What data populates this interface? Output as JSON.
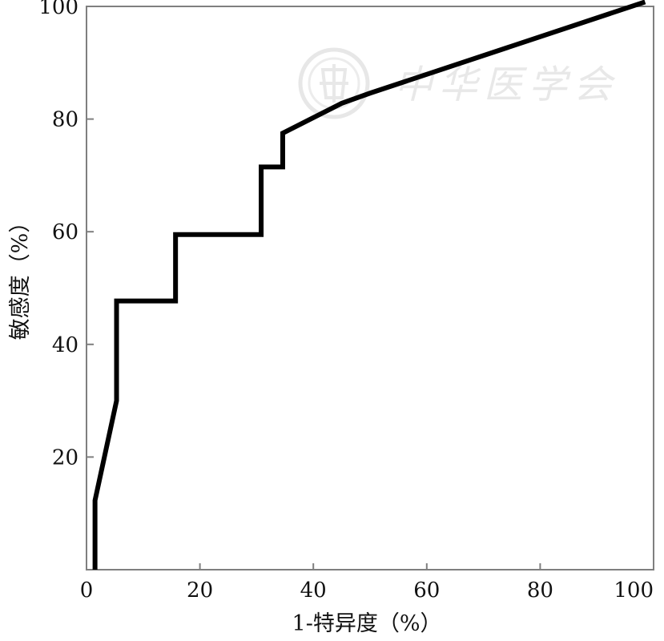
{
  "chart_data": {
    "type": "line",
    "title": "",
    "xlabel": "1-特异度（%）",
    "ylabel": "敏感度（%）",
    "xlim": [
      0,
      100
    ],
    "ylim": [
      0,
      100
    ],
    "x_ticks": [
      0,
      20,
      40,
      60,
      80,
      100
    ],
    "y_ticks": [
      20,
      40,
      60,
      80,
      100
    ],
    "x_tick_labels": [
      "0",
      "20",
      "40",
      "60",
      "80",
      "100"
    ],
    "y_tick_labels": [
      "20",
      "40",
      "60",
      "80",
      "100"
    ],
    "grid": false,
    "series": [
      {
        "color": "#000000",
        "x": [
          1.5,
          1.5,
          5.3,
          5.3,
          15.7,
          15.7,
          30.8,
          30.8,
          34.6,
          34.6,
          45.0,
          50.0,
          98.5
        ],
        "y": [
          0,
          12.3,
          30.0,
          47.7,
          47.7,
          59.5,
          59.5,
          71.5,
          71.5,
          77.5,
          82.8,
          84.6,
          100.8
        ]
      }
    ],
    "watermark": {
      "text": "中华医学会"
    }
  }
}
